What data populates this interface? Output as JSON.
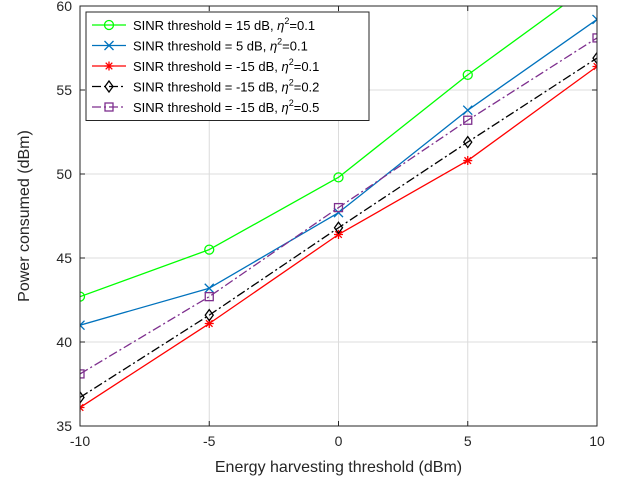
{
  "chart_data": {
    "type": "line",
    "title": "",
    "xlabel": "Energy harvesting threshold (dBm)",
    "ylabel": "Power consumed (dBm)",
    "xlim": [
      -10,
      10
    ],
    "ylim": [
      35,
      60
    ],
    "xticks": [
      -10,
      -5,
      0,
      5,
      10
    ],
    "xtick_labels": [
      "-10",
      "-5",
      "0",
      "5",
      "10"
    ],
    "yticks": [
      35,
      40,
      45,
      50,
      55,
      60
    ],
    "ytick_labels": [
      "35",
      "40",
      "45",
      "50",
      "55",
      "60"
    ],
    "grid": true,
    "legend_position": "top-left",
    "x": [
      -10,
      -5,
      0,
      5,
      10
    ],
    "series": [
      {
        "name": "SINR threshold = 15 dB, η²=0.1",
        "label_prefix": "SINR threshold = 15 dB, ",
        "eta_value": "=0.1",
        "values": [
          42.7,
          45.5,
          49.8,
          55.9,
          61.5
        ],
        "color": "#00ff00",
        "marker": "circle",
        "dash": "solid"
      },
      {
        "name": "SINR threshold = 5 dB, η²=0.1",
        "label_prefix": "SINR threshold = 5 dB, ",
        "eta_value": "=0.1",
        "values": [
          41.0,
          43.2,
          47.7,
          53.8,
          59.2
        ],
        "color": "#0072bd",
        "marker": "x",
        "dash": "solid"
      },
      {
        "name": "SINR threshold = -15 dB, η²=0.1",
        "label_prefix": "SINR threshold = -15 dB, ",
        "eta_value": "=0.1",
        "values": [
          36.1,
          41.1,
          46.4,
          50.8,
          56.4
        ],
        "color": "#ff0000",
        "marker": "asterisk",
        "dash": "solid"
      },
      {
        "name": "SINR threshold = -15 dB, η²=0.2",
        "label_prefix": "SINR threshold = -15 dB, ",
        "eta_value": "=0.2",
        "values": [
          36.7,
          41.6,
          46.8,
          51.9,
          56.9
        ],
        "color": "#000000",
        "marker": "diamond",
        "dash": "dashdot"
      },
      {
        "name": "SINR threshold = -15 dB, η²=0.5",
        "label_prefix": "SINR threshold = -15 dB, ",
        "eta_value": "=0.5",
        "values": [
          38.1,
          42.7,
          48.0,
          53.2,
          58.1
        ],
        "color": "#7e2f8e",
        "marker": "square",
        "dash": "dashdot"
      }
    ]
  }
}
